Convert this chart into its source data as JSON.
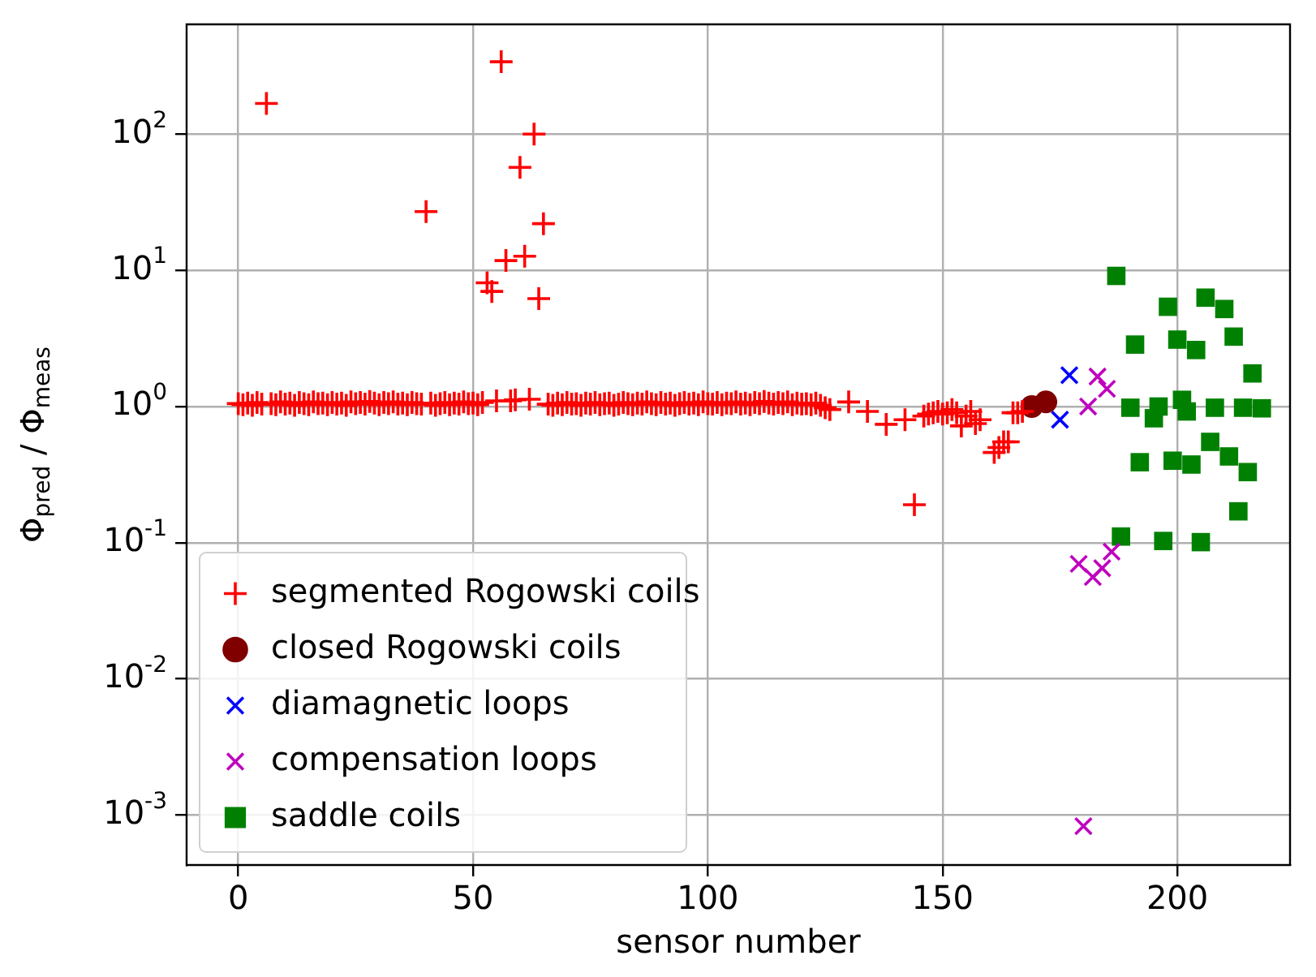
{
  "chart_data": {
    "type": "scatter",
    "xlabel": "sensor number",
    "ylabel": "Φ$_{pred}$ / Φ$_{meas}$",
    "log": "y",
    "grid": true,
    "legend": "bottom left",
    "xlim": [
      -11,
      224
    ],
    "xticks": [
      0,
      50,
      100,
      150,
      200
    ],
    "ylim": [
      0.00043,
      640
    ],
    "yticks": [
      {
        "value": 0.001,
        "label": "10$^{-3}$"
      },
      {
        "value": 0.01,
        "label": "10$^{-2}$"
      },
      {
        "value": 0.1,
        "label": "10$^{-1}$"
      },
      {
        "value": 1,
        "label": "10$^{0}$"
      },
      {
        "value": 10,
        "label": "10$^{1}$"
      },
      {
        "value": 100,
        "label": "10$^{2}$"
      }
    ],
    "series": [
      {
        "name": "segmented Rogowski coils",
        "color": "#ff0000",
        "marker": "plus",
        "x": [
          0,
          1,
          2,
          3,
          4,
          5,
          6,
          7,
          8,
          9,
          10,
          11,
          12,
          13,
          14,
          15,
          16,
          17,
          18,
          19,
          20,
          21,
          22,
          23,
          24,
          25,
          26,
          27,
          28,
          29,
          30,
          31,
          32,
          33,
          34,
          35,
          36,
          37,
          38,
          39,
          40,
          41,
          42,
          43,
          44,
          45,
          46,
          47,
          48,
          49,
          50,
          51,
          52,
          53,
          54,
          55,
          56,
          57,
          58,
          59,
          60,
          61,
          62,
          63,
          64,
          65,
          66,
          67,
          68,
          69,
          70,
          71,
          72,
          73,
          74,
          75,
          76,
          77,
          78,
          79,
          80,
          81,
          82,
          83,
          84,
          85,
          86,
          87,
          88,
          89,
          90,
          91,
          92,
          93,
          94,
          95,
          96,
          97,
          98,
          99,
          100,
          101,
          102,
          103,
          104,
          105,
          106,
          107,
          108,
          109,
          110,
          111,
          112,
          113,
          114,
          115,
          116,
          117,
          118,
          119,
          120,
          121,
          122,
          123,
          124,
          125,
          126,
          130,
          134,
          138,
          142,
          144,
          146,
          147,
          148,
          149,
          150,
          151,
          152,
          153,
          154,
          155,
          156,
          157,
          158,
          161,
          162,
          163,
          164,
          165,
          166,
          167
        ],
        "values": [
          1.05,
          1.03,
          1.06,
          1.02,
          1.07,
          1.04,
          168,
          1.05,
          1.03,
          1.08,
          1.04,
          1.06,
          1.02,
          1.07,
          1.05,
          1.03,
          1.08,
          1.05,
          1.06,
          1.03,
          1.07,
          1.04,
          1.06,
          1.02,
          1.08,
          1.05,
          1.07,
          1.04,
          1.09,
          1.06,
          1.03,
          1.07,
          1.05,
          1.08,
          1.04,
          1.06,
          1.03,
          1.07,
          1.05,
          1.04,
          27,
          1.06,
          1.02,
          1.05,
          1.07,
          1.03,
          1.06,
          1.04,
          1.08,
          1.05,
          1.06,
          1.03,
          1.07,
          8.1,
          7.0,
          1.1,
          340,
          11.8,
          1.1,
          1.12,
          57,
          12.7,
          1.13,
          100,
          6.2,
          22,
          1.04,
          1.02,
          1.06,
          1.03,
          1.07,
          1.04,
          1.05,
          1.02,
          1.06,
          1.04,
          1.07,
          1.03,
          1.05,
          1.06,
          1.02,
          1.04,
          1.07,
          1.05,
          1.03,
          1.06,
          1.04,
          1.08,
          1.05,
          1.03,
          1.07,
          1.04,
          1.06,
          1.02,
          1.05,
          1.07,
          1.04,
          1.06,
          1.03,
          1.08,
          1.05,
          1.04,
          1.07,
          1.03,
          1.06,
          1.05,
          1.08,
          1.04,
          1.06,
          1.03,
          1.07,
          1.05,
          1.09,
          1.06,
          1.04,
          1.07,
          1.05,
          1.08,
          1.03,
          1.06,
          1.04,
          1.05,
          1.03,
          1.06,
          1.02,
          0.98,
          0.95,
          1.08,
          0.92,
          0.74,
          0.8,
          0.19,
          0.85,
          0.88,
          0.9,
          0.92,
          0.88,
          0.9,
          0.95,
          0.9,
          0.72,
          0.85,
          0.92,
          0.75,
          0.8,
          0.46,
          0.5,
          0.55,
          0.55,
          0.9,
          0.9,
          0.92
        ]
      },
      {
        "name": "closed Rogowski coils",
        "color": "#800000",
        "marker": "circle",
        "x": [
          169,
          172
        ],
        "values": [
          1.0,
          1.08
        ]
      },
      {
        "name": "diamagnetic loops",
        "color": "#0000ff",
        "marker": "cross",
        "x": [
          175,
          177
        ],
        "values": [
          0.8,
          1.7
        ]
      },
      {
        "name": "compensation loops",
        "color": "#bf00bf",
        "marker": "cross",
        "x": [
          179,
          180,
          181,
          182,
          183,
          184,
          185,
          186
        ],
        "values": [
          0.07,
          0.00083,
          1.0,
          0.056,
          1.66,
          0.065,
          1.35,
          0.086
        ]
      },
      {
        "name": "saddle coils",
        "color": "#008000",
        "marker": "square",
        "x": [
          187,
          188,
          190,
          191,
          192,
          195,
          196,
          197,
          198,
          199,
          200,
          201,
          202,
          203,
          204,
          205,
          206,
          207,
          208,
          210,
          211,
          212,
          213,
          214,
          215,
          216,
          218
        ],
        "values": [
          9.1,
          0.111,
          0.98,
          2.85,
          0.39,
          0.82,
          1.0,
          0.103,
          5.4,
          0.4,
          3.1,
          1.12,
          0.92,
          0.375,
          2.6,
          0.101,
          6.3,
          0.55,
          0.98,
          5.2,
          0.43,
          3.26,
          0.17,
          0.98,
          0.33,
          1.75,
          0.97
        ]
      }
    ]
  }
}
